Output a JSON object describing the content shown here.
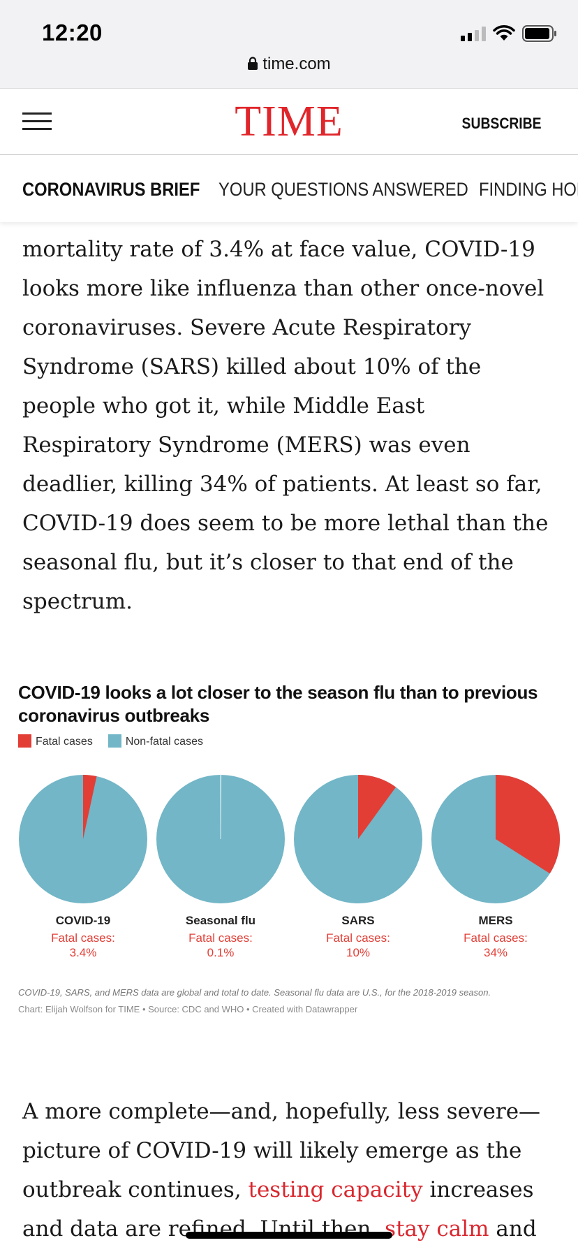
{
  "status_bar": {
    "time": "12:20",
    "url": "time.com"
  },
  "header": {
    "logo": "TIME",
    "subscribe_label": "SUBSCRIBE"
  },
  "section_nav": {
    "items": [
      {
        "label": "CORONAVIRUS BRIEF",
        "active": true
      },
      {
        "label": "YOUR QUESTIONS ANSWERED",
        "active": false
      },
      {
        "label": "FINDING HOPE",
        "active": false
      }
    ]
  },
  "article": {
    "paragraph_1": "mortality rate of 3.4% at face value, COVID-19 looks more like influenza than other once-novel coronaviruses. Severe Acute Respiratory Syndrome (SARS) killed about 10% of the people who got it, while Middle East Respiratory Syndrome (MERS) was even deadlier, killing 34% of patients. At least so far, COVID-19 does seem to be more lethal than the seasonal flu, but it’s closer to that end of the spectrum.",
    "paragraph_2": {
      "part_1": "A more complete—and, hopefully, less severe—picture of COVID-19 will likely emerge as the outbreak continues, ",
      "link_1": "testing capacity",
      "part_2": " increases and data are refined. Until then, ",
      "link_2": "stay calm",
      "part_3": " and"
    }
  },
  "chart_data": {
    "type": "pie",
    "title": "COVID-19 looks a lot closer to the season flu than to previous coronavirus outbreaks",
    "legend": [
      {
        "label": "Fatal cases",
        "color": "#e33e36"
      },
      {
        "label": "Non-fatal cases",
        "color": "#72b6c7"
      }
    ],
    "legend_placement": "top-left",
    "series_label": "Fatal cases:",
    "pies": [
      {
        "name": "COVID-19",
        "fatal_pct": 3.4,
        "fatal_label": "3.4%"
      },
      {
        "name": "Seasonal flu",
        "fatal_pct": 0.1,
        "fatal_label": "0.1%"
      },
      {
        "name": "SARS",
        "fatal_pct": 10,
        "fatal_label": "10%"
      },
      {
        "name": "MERS",
        "fatal_pct": 34,
        "fatal_label": "34%"
      }
    ],
    "note": "COVID-19, SARS, and MERS data are global and total to date. Seasonal flu data are U.S., for the 2018-2019 season.",
    "credit": "Chart: Elijah Wolfson for TIME • Source: CDC and WHO • Created with Datawrapper"
  }
}
